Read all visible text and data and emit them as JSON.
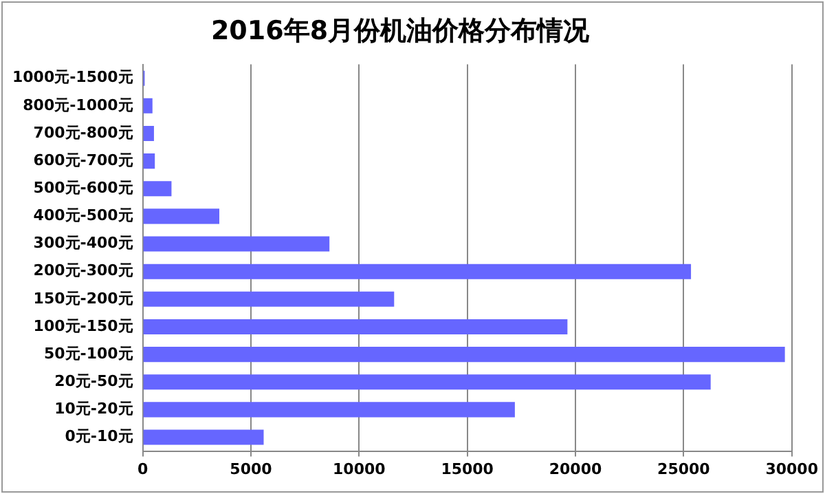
{
  "chart_data": {
    "type": "bar",
    "orientation": "horizontal",
    "title": "2016年8月份机油价格分布情况",
    "categories": [
      "1000元-1500元",
      "800元-1000元",
      "700元-800元",
      "600元-700元",
      "500元-600元",
      "400元-500元",
      "300元-400元",
      "200元-300元",
      "150元-200元",
      "100元-150元",
      "50元-100元",
      "20元-50元",
      "10元-20元",
      "0元-10元"
    ],
    "values": [
      90,
      450,
      520,
      560,
      1330,
      3540,
      8630,
      25340,
      11620,
      19630,
      29680,
      26250,
      17200,
      5590
    ],
    "color": "#6666ff",
    "xlim": [
      0,
      30000
    ],
    "xticks": [
      0,
      5000,
      10000,
      15000,
      20000,
      25000,
      30000
    ],
    "grid": "x",
    "legend": false
  }
}
